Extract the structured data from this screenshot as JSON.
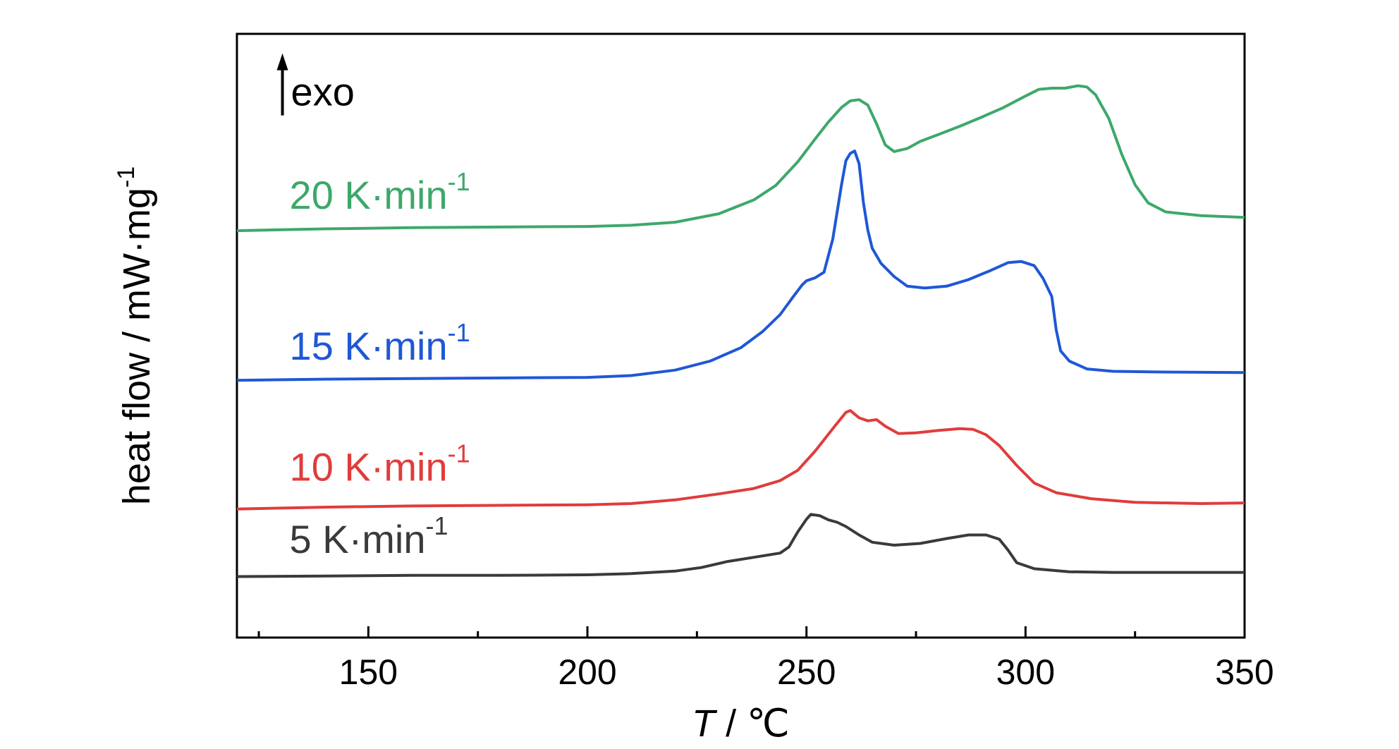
{
  "chart_data": {
    "type": "line",
    "title": "",
    "xlabel": {
      "var": "T",
      "sep": " / ",
      "unit": "℃"
    },
    "ylabel": {
      "text": "heat flow / mW·mg",
      "sup": "-1"
    },
    "xlim": [
      120,
      350
    ],
    "ylim": [
      0,
      100
    ],
    "xticks": [
      150,
      200,
      250,
      300,
      350
    ],
    "x_minor_ticks": [
      125,
      175,
      225,
      275,
      325
    ],
    "grid": false,
    "annotation": {
      "text": "exo",
      "arrow": "up",
      "x": 132,
      "y": 90
    },
    "series": [
      {
        "name": "20 K·min",
        "sup": "-1",
        "color": "#3DA86B",
        "label_pos": [
          132,
          71
        ],
        "points": [
          [
            120,
            67.4
          ],
          [
            140,
            67.7
          ],
          [
            160,
            67.9
          ],
          [
            180,
            68.0
          ],
          [
            200,
            68.1
          ],
          [
            210,
            68.3
          ],
          [
            220,
            68.8
          ],
          [
            230,
            70.2
          ],
          [
            238,
            72.5
          ],
          [
            243,
            74.9
          ],
          [
            248,
            78.8
          ],
          [
            252,
            82.6
          ],
          [
            255,
            85.4
          ],
          [
            258,
            87.8
          ],
          [
            260,
            88.9
          ],
          [
            262,
            89.1
          ],
          [
            264,
            88.2
          ],
          [
            266,
            85.1
          ],
          [
            268,
            81.6
          ],
          [
            270,
            80.5
          ],
          [
            273,
            81.0
          ],
          [
            276,
            82.2
          ],
          [
            280,
            83.3
          ],
          [
            285,
            84.7
          ],
          [
            290,
            86.2
          ],
          [
            295,
            87.8
          ],
          [
            300,
            89.7
          ],
          [
            303,
            90.8
          ],
          [
            306,
            91.0
          ],
          [
            309,
            91.0
          ],
          [
            312,
            91.4
          ],
          [
            314,
            91.2
          ],
          [
            316,
            89.9
          ],
          [
            319,
            86.0
          ],
          [
            322,
            80.0
          ],
          [
            325,
            75.0
          ],
          [
            328,
            72.0
          ],
          [
            332,
            70.5
          ],
          [
            340,
            69.9
          ],
          [
            350,
            69.6
          ]
        ]
      },
      {
        "name": "15 K·min",
        "sup": "-1",
        "color": "#1F57D6",
        "label_pos": [
          132,
          46
        ],
        "points": [
          [
            120,
            42.6
          ],
          [
            140,
            42.8
          ],
          [
            160,
            42.9
          ],
          [
            180,
            43.0
          ],
          [
            200,
            43.1
          ],
          [
            210,
            43.4
          ],
          [
            220,
            44.3
          ],
          [
            228,
            45.8
          ],
          [
            235,
            48.0
          ],
          [
            240,
            50.7
          ],
          [
            244,
            53.5
          ],
          [
            247,
            56.5
          ],
          [
            249,
            58.4
          ],
          [
            250,
            59.1
          ],
          [
            252,
            59.6
          ],
          [
            254,
            60.5
          ],
          [
            256,
            66.0
          ],
          [
            258,
            75.0
          ],
          [
            259,
            79.0
          ],
          [
            260,
            80.2
          ],
          [
            261,
            80.6
          ],
          [
            262,
            78.5
          ],
          [
            263,
            72.0
          ],
          [
            264,
            67.5
          ],
          [
            265,
            64.5
          ],
          [
            267,
            62.0
          ],
          [
            270,
            59.8
          ],
          [
            273,
            58.2
          ],
          [
            277,
            57.9
          ],
          [
            282,
            58.2
          ],
          [
            287,
            59.3
          ],
          [
            292,
            60.8
          ],
          [
            296,
            62.1
          ],
          [
            299,
            62.3
          ],
          [
            302,
            61.6
          ],
          [
            304,
            59.5
          ],
          [
            306,
            56.5
          ],
          [
            307,
            51.0
          ],
          [
            308,
            47.5
          ],
          [
            310,
            45.8
          ],
          [
            314,
            44.5
          ],
          [
            320,
            44.1
          ],
          [
            330,
            44.0
          ],
          [
            350,
            43.9
          ]
        ]
      },
      {
        "name": "10 K·min",
        "sup": "-1",
        "color": "#E03C3C",
        "label_pos": [
          132,
          26
        ],
        "points": [
          [
            120,
            21.3
          ],
          [
            140,
            21.6
          ],
          [
            160,
            21.8
          ],
          [
            180,
            21.9
          ],
          [
            200,
            22.0
          ],
          [
            210,
            22.2
          ],
          [
            220,
            22.8
          ],
          [
            230,
            23.8
          ],
          [
            238,
            24.7
          ],
          [
            244,
            26.0
          ],
          [
            248,
            27.7
          ],
          [
            252,
            30.9
          ],
          [
            256,
            34.6
          ],
          [
            259,
            37.3
          ],
          [
            260,
            37.6
          ],
          [
            262,
            36.4
          ],
          [
            264,
            35.9
          ],
          [
            266,
            36.1
          ],
          [
            268,
            35.0
          ],
          [
            271,
            33.8
          ],
          [
            275,
            33.9
          ],
          [
            280,
            34.3
          ],
          [
            285,
            34.6
          ],
          [
            288,
            34.5
          ],
          [
            291,
            33.6
          ],
          [
            294,
            31.8
          ],
          [
            298,
            28.5
          ],
          [
            302,
            25.6
          ],
          [
            307,
            24.0
          ],
          [
            315,
            23.0
          ],
          [
            325,
            22.4
          ],
          [
            340,
            22.2
          ],
          [
            350,
            22.3
          ]
        ]
      },
      {
        "name": "5 K·min",
        "sup": "-1",
        "color": "#3A3A3A",
        "label_pos": [
          132,
          14
        ],
        "points": [
          [
            120,
            10.1
          ],
          [
            140,
            10.2
          ],
          [
            160,
            10.3
          ],
          [
            180,
            10.3
          ],
          [
            200,
            10.4
          ],
          [
            210,
            10.6
          ],
          [
            220,
            11.0
          ],
          [
            226,
            11.6
          ],
          [
            232,
            12.6
          ],
          [
            238,
            13.3
          ],
          [
            244,
            14.0
          ],
          [
            246,
            15.0
          ],
          [
            248,
            17.5
          ],
          [
            250,
            19.6
          ],
          [
            251,
            20.4
          ],
          [
            253,
            20.2
          ],
          [
            255,
            19.5
          ],
          [
            257,
            19.1
          ],
          [
            259,
            18.4
          ],
          [
            262,
            17.0
          ],
          [
            265,
            15.8
          ],
          [
            270,
            15.3
          ],
          [
            276,
            15.6
          ],
          [
            282,
            16.4
          ],
          [
            287,
            17.0
          ],
          [
            291,
            17.0
          ],
          [
            294,
            16.3
          ],
          [
            296,
            14.5
          ],
          [
            298,
            12.4
          ],
          [
            302,
            11.4
          ],
          [
            310,
            10.9
          ],
          [
            320,
            10.8
          ],
          [
            335,
            10.8
          ],
          [
            350,
            10.8
          ]
        ]
      }
    ]
  }
}
